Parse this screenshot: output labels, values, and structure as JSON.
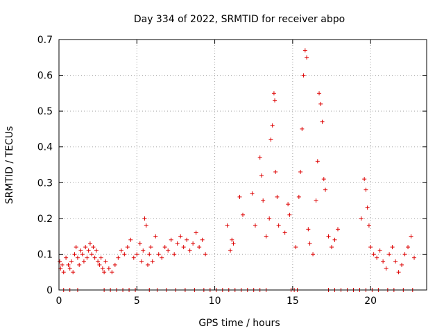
{
  "chart_data": {
    "type": "scatter",
    "title": "Day 334 of 2022, SRMTID for receiver abpo",
    "xlabel": "GPS time / hours",
    "ylabel": "SRMTID / TECUs",
    "xlim": [
      0,
      23.6
    ],
    "ylim": [
      0,
      0.7
    ],
    "xticks": [
      0,
      5,
      10,
      15,
      20
    ],
    "xtick_labels": [
      "0",
      "5",
      "10",
      "15",
      "20"
    ],
    "yticks": [
      0,
      0.1,
      0.2,
      0.3,
      0.4,
      0.5,
      0.6,
      0.7
    ],
    "ytick_labels": [
      "0",
      "0.1",
      "0.2",
      "0.3",
      "0.4",
      "0.5",
      "0.6",
      "0.7"
    ],
    "grid": true,
    "marker": "+",
    "colors": {
      "series": "#dd0000",
      "grid": "#a0a0a0",
      "axis": "#000000"
    },
    "series": [
      {
        "name": "SRMTID",
        "x": [
          0.05,
          0.1,
          0.2,
          0.3,
          0.45,
          0.6,
          0.7,
          0.8,
          0.9,
          1.0,
          1.1,
          1.2,
          1.3,
          1.4,
          1.5,
          1.6,
          1.7,
          1.8,
          1.9,
          2.0,
          2.1,
          2.2,
          2.3,
          2.4,
          2.5,
          2.6,
          2.7,
          2.8,
          2.9,
          3.0,
          3.2,
          3.4,
          3.6,
          3.8,
          4.0,
          4.2,
          4.4,
          4.6,
          4.8,
          5.0,
          5.2,
          5.3,
          5.4,
          5.5,
          5.6,
          5.7,
          5.8,
          5.9,
          6.0,
          6.2,
          6.4,
          6.6,
          6.8,
          7.0,
          7.2,
          7.4,
          7.6,
          7.8,
          8.0,
          8.2,
          8.4,
          8.6,
          8.8,
          9.0,
          9.2,
          9.4,
          10.8,
          11.0,
          11.1,
          11.2,
          11.6,
          11.8,
          12.4,
          12.6,
          12.9,
          13.0,
          13.1,
          13.3,
          13.5,
          13.6,
          13.7,
          13.8,
          13.85,
          13.9,
          14.0,
          14.1,
          14.5,
          14.7,
          14.8,
          15.2,
          15.4,
          15.5,
          15.6,
          15.7,
          15.8,
          15.9,
          16.0,
          16.1,
          16.3,
          16.5,
          16.6,
          16.7,
          16.8,
          16.9,
          17.0,
          17.1,
          17.3,
          17.5,
          17.7,
          17.9,
          19.4,
          19.6,
          19.7,
          19.8,
          19.9,
          20.0,
          20.2,
          20.4,
          20.6,
          20.8,
          21.0,
          21.2,
          21.4,
          21.6,
          21.8,
          22.0,
          22.2,
          22.4,
          22.6,
          22.8,
          0.3,
          0.7,
          1.2,
          2.9,
          3.3,
          3.7,
          4.1,
          4.5,
          4.9,
          5.8,
          6.3,
          6.9,
          7.5,
          8.1,
          8.7,
          9.3,
          9.7,
          10.1,
          10.5,
          10.9,
          11.3,
          11.7,
          12.1,
          12.5,
          12.9,
          13.3,
          14.9,
          15.1,
          15.3,
          17.3,
          17.7,
          18.1,
          18.5,
          18.9,
          19.3,
          19.7,
          20.1,
          20.5,
          21.1,
          21.5,
          22.1,
          22.7
        ],
        "y": [
          0.08,
          0.06,
          0.07,
          0.05,
          0.09,
          0.07,
          0.06,
          0.08,
          0.05,
          0.1,
          0.12,
          0.09,
          0.07,
          0.11,
          0.1,
          0.08,
          0.12,
          0.09,
          0.11,
          0.13,
          0.1,
          0.12,
          0.09,
          0.11,
          0.08,
          0.07,
          0.09,
          0.06,
          0.05,
          0.08,
          0.06,
          0.05,
          0.07,
          0.09,
          0.11,
          0.1,
          0.12,
          0.14,
          0.09,
          0.1,
          0.13,
          0.08,
          0.11,
          0.2,
          0.18,
          0.07,
          0.1,
          0.12,
          0.08,
          0.15,
          0.1,
          0.09,
          0.12,
          0.11,
          0.14,
          0.1,
          0.13,
          0.15,
          0.12,
          0.14,
          0.11,
          0.13,
          0.16,
          0.12,
          0.14,
          0.1,
          0.18,
          0.11,
          0.14,
          0.13,
          0.26,
          0.21,
          0.27,
          0.18,
          0.37,
          0.32,
          0.25,
          0.15,
          0.2,
          0.42,
          0.46,
          0.55,
          0.53,
          0.33,
          0.26,
          0.18,
          0.16,
          0.24,
          0.21,
          0.12,
          0.26,
          0.33,
          0.45,
          0.6,
          0.67,
          0.65,
          0.17,
          0.13,
          0.1,
          0.25,
          0.36,
          0.55,
          0.52,
          0.47,
          0.31,
          0.28,
          0.15,
          0.12,
          0.14,
          0.17,
          0.2,
          0.31,
          0.28,
          0.23,
          0.18,
          0.12,
          0.1,
          0.09,
          0.11,
          0.08,
          0.06,
          0.1,
          0.12,
          0.08,
          0.05,
          0.07,
          0.1,
          0.12,
          0.15,
          0.09,
          0,
          0,
          0,
          0,
          0,
          0,
          0,
          0,
          0,
          0,
          0,
          0,
          0,
          0,
          0,
          0,
          0,
          0,
          0,
          0,
          0,
          0,
          0,
          0,
          0,
          0,
          0,
          0,
          0,
          0,
          0,
          0,
          0,
          0,
          0,
          0,
          0,
          0,
          0,
          0,
          0,
          0
        ]
      }
    ]
  }
}
